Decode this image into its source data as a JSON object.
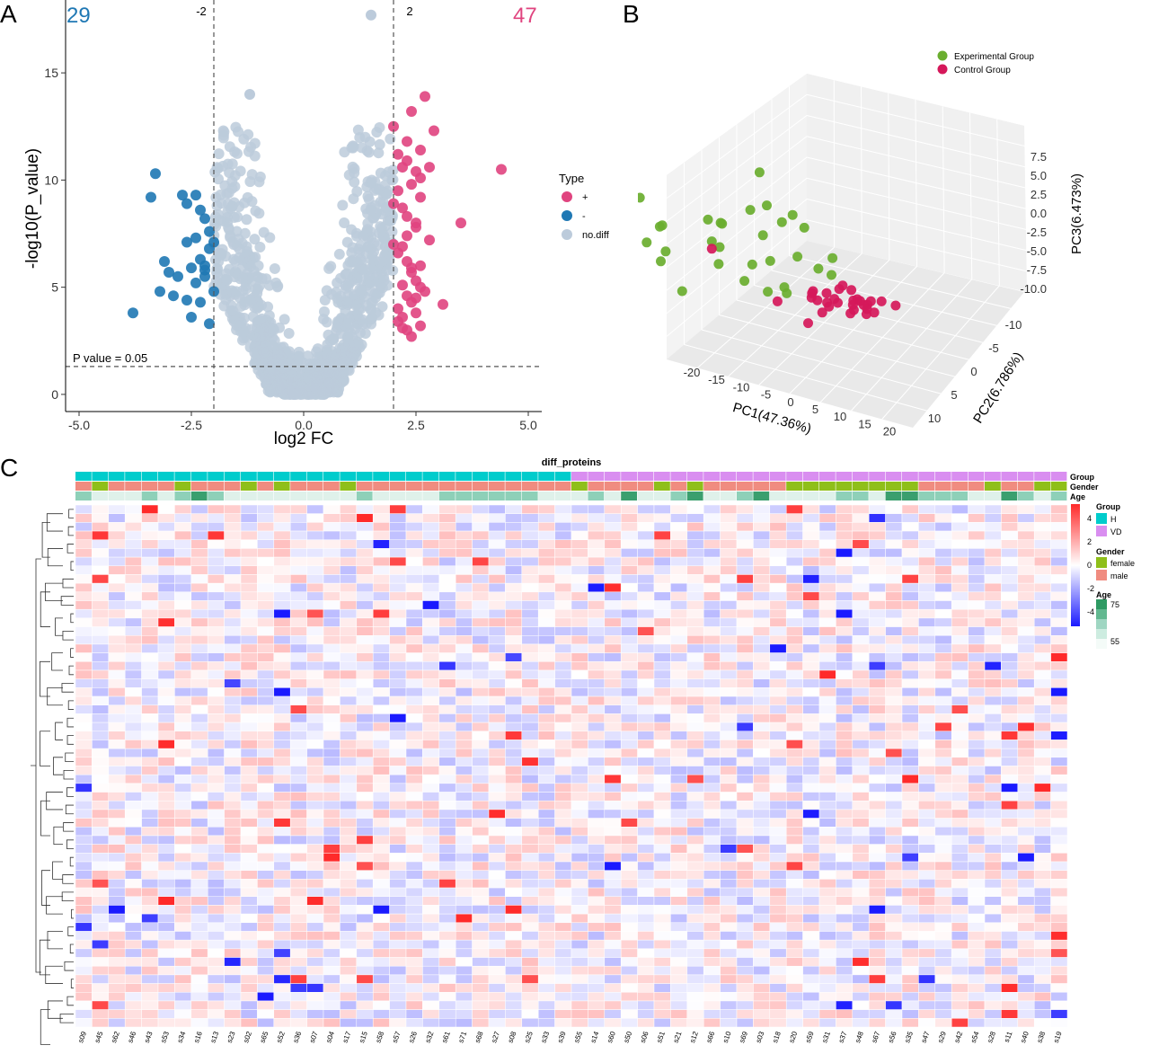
{
  "panels": {
    "a": "A",
    "b": "B",
    "c": "C"
  },
  "chart_data": [
    {
      "type": "scatter",
      "subtype": "volcano",
      "xlabel": "log2 FC",
      "ylabel": "-log10(P_value)",
      "xlim": [
        -5.3,
        5.3
      ],
      "ylim": [
        -0.8,
        18.4
      ],
      "xticks": [
        "-5.0",
        "-2.5",
        "0.0",
        "2.5",
        "5.0"
      ],
      "yticks": [
        "0",
        "5",
        "10",
        "15"
      ],
      "count_down": "29",
      "count_up": "47",
      "fc_lines": [
        -2,
        2
      ],
      "fc_line_labels": [
        "-2",
        "2"
      ],
      "p_line": 1.3,
      "p_line_label": "P value = 0.05",
      "legend": {
        "title": "Type",
        "position": "right",
        "entries": [
          "+",
          "-",
          "no.diff"
        ]
      },
      "colors": {
        "up": "#e0447f",
        "down": "#1f78b4",
        "nodiff": "#bccbdb"
      },
      "series": [
        {
          "name": "+",
          "x": [
            2.0,
            2.1,
            2.3,
            2.4,
            2.2,
            2.5,
            2.6,
            2.7,
            2.9,
            2.4,
            2.6,
            2.2,
            2.3,
            2.5,
            2.8,
            2.0,
            2.1,
            2.3,
            2.6,
            2.4,
            2.5,
            2.2,
            2.7,
            2.3,
            2.4,
            2.1,
            2.5,
            2.2,
            2.6,
            2.3,
            2.4,
            2.1,
            2.0,
            2.5,
            2.3,
            2.2,
            2.4,
            2.6,
            2.1,
            2.2,
            2.8,
            3.5,
            4.4,
            3.1,
            2.5,
            2.3,
            2.6
          ],
          "y": [
            12.5,
            11.2,
            11.8,
            13.2,
            10.6,
            10.4,
            10.1,
            13.9,
            12.3,
            9.8,
            9.2,
            8.7,
            8.3,
            7.8,
            7.2,
            7.0,
            6.6,
            6.2,
            6.0,
            5.7,
            5.3,
            5.1,
            4.8,
            4.6,
            4.3,
            4.0,
            3.8,
            3.6,
            3.2,
            3.0,
            2.7,
            9.5,
            8.9,
            8.0,
            7.4,
            6.9,
            5.9,
            5.0,
            3.4,
            3.1,
            10.6,
            8.0,
            10.5,
            4.2,
            4.5,
            10.9,
            11.4
          ]
        },
        {
          "name": "-",
          "x": [
            -3.3,
            -3.4,
            -2.7,
            -2.4,
            -2.6,
            -2.3,
            -2.2,
            -3.1,
            -3.0,
            -2.8,
            -2.5,
            -2.2,
            -2.1,
            -3.2,
            -2.9,
            -2.6,
            -2.4,
            -2.3,
            -3.8,
            -2.5,
            -2.1,
            -2.2,
            -2.0,
            -2.6,
            -2.4,
            -2.1,
            -2.0,
            -2.3,
            -2.2
          ],
          "y": [
            10.3,
            9.2,
            9.3,
            9.3,
            8.9,
            8.6,
            8.2,
            6.2,
            5.7,
            5.5,
            5.9,
            6.0,
            6.8,
            4.8,
            4.6,
            4.4,
            5.2,
            4.3,
            3.8,
            3.6,
            3.3,
            5.5,
            4.8,
            7.1,
            7.3,
            7.6,
            7.1,
            6.3,
            5.8
          ]
        }
      ],
      "highlights": [
        {
          "x": 1.5,
          "y": 17.7
        },
        {
          "x": -1.2,
          "y": 14.0
        }
      ]
    },
    {
      "type": "scatter",
      "subtype": "3d-pca",
      "xlabel": "PC1(47.36%)",
      "ylabel": "PC2(6.786%)",
      "zlabel": "PC3(6.473%)",
      "x_ticks": [
        "-20",
        "-15",
        "-10",
        "-5",
        "0",
        "5",
        "10",
        "15",
        "20"
      ],
      "y_ticks": [
        "-10",
        "-5",
        "0",
        "5",
        "10"
      ],
      "z_ticks": [
        "7.5",
        "5.0",
        "2.5",
        "0.0",
        "-2.5",
        "-5.0",
        "-7.5",
        "-10.0"
      ],
      "legend": {
        "position": "top-right",
        "entries": [
          "Experimental Group",
          "Control Group"
        ]
      },
      "colors": {
        "Experimental Group": "#6aae2f",
        "Control Group": "#d5185a"
      },
      "series": [
        {
          "name": "Experimental Group",
          "points": [
            [
              -14,
              6,
              9
            ],
            [
              -12,
              5,
              5
            ],
            [
              -13,
              4,
              4
            ],
            [
              -8,
              -6,
              6
            ],
            [
              -10,
              0,
              3
            ],
            [
              -6,
              5,
              4
            ],
            [
              -5,
              -3,
              4
            ],
            [
              -7,
              -3,
              3
            ],
            [
              -9,
              -1,
              2
            ],
            [
              -15,
              1,
              -3
            ],
            [
              -12,
              -5,
              -1
            ],
            [
              -10,
              -2,
              -2
            ],
            [
              -4,
              -6,
              1
            ],
            [
              -6,
              -7,
              -1
            ],
            [
              -4,
              -8,
              -2
            ],
            [
              -2,
              -4,
              -3
            ],
            [
              -9,
              -8,
              -4
            ],
            [
              -6,
              -5,
              -5
            ],
            [
              -7,
              -2,
              -6
            ],
            [
              -11,
              3,
              -5
            ],
            [
              -5,
              -6,
              -9
            ],
            [
              -3,
              -9,
              -8
            ],
            [
              -4,
              -5,
              -9
            ],
            [
              0,
              -7,
              -7
            ],
            [
              -2,
              -10,
              -7
            ],
            [
              -11,
              -9,
              -9
            ],
            [
              -16,
              2,
              0
            ],
            [
              -8,
              1,
              -2
            ],
            [
              -13,
              3,
              0
            ],
            [
              -7,
              -6,
              -10
            ]
          ]
        },
        {
          "name": "Control Group",
          "points": [
            [
              13,
              8,
              3
            ],
            [
              11,
              9,
              1
            ],
            [
              10,
              8,
              2
            ],
            [
              8,
              3,
              -1
            ],
            [
              9,
              2,
              -3
            ],
            [
              7,
              1,
              -2
            ],
            [
              6,
              1,
              -4
            ],
            [
              4,
              2,
              -3
            ],
            [
              12,
              4,
              -3
            ],
            [
              10,
              1,
              -4
            ],
            [
              9,
              -1,
              -5
            ],
            [
              7,
              -2,
              -6
            ],
            [
              5,
              -1,
              -6
            ],
            [
              3,
              -2,
              -7
            ],
            [
              2,
              -1,
              -5
            ],
            [
              8,
              -3,
              -8
            ],
            [
              6,
              -4,
              -8
            ],
            [
              4,
              -5,
              -9
            ],
            [
              1,
              -4,
              -10
            ],
            [
              0,
              -3,
              -11
            ],
            [
              5,
              -6,
              -10
            ],
            [
              3,
              -6,
              -11
            ],
            [
              -1,
              -5,
              -9
            ],
            [
              -3,
              -2,
              -8
            ],
            [
              2,
              -8,
              -12
            ],
            [
              1,
              -10,
              -12
            ],
            [
              -6,
              5,
              3
            ],
            [
              11,
              0,
              -4
            ],
            [
              12,
              -1,
              -5
            ],
            [
              -1,
              -6,
              -10
            ]
          ]
        }
      ]
    },
    {
      "type": "heatmap",
      "title": "diff_proteins",
      "samples": [
        "s09",
        "s45",
        "s62",
        "s46",
        "s43",
        "s53",
        "s34",
        "s16",
        "s13",
        "s23",
        "s02",
        "s65",
        "s52",
        "s36",
        "s07",
        "s04",
        "s17",
        "s15",
        "s58",
        "s57",
        "s26",
        "s32",
        "s61",
        "s71",
        "s68",
        "s27",
        "s08",
        "s25",
        "s33",
        "s39",
        "s55",
        "s14",
        "s60",
        "s50",
        "s06",
        "s51",
        "s21",
        "s12",
        "s66",
        "s10",
        "s69",
        "s03",
        "s18",
        "s20",
        "s59",
        "s31",
        "s37",
        "s48",
        "s67",
        "s56",
        "s35",
        "s47",
        "s29",
        "s42",
        "s54",
        "s28",
        "s11",
        "s40",
        "s38",
        "s19"
      ],
      "group_count_H": 30,
      "gender_female_idx": [
        1,
        6,
        10,
        12,
        16,
        30,
        35,
        37,
        43,
        44,
        45,
        46,
        47,
        48,
        49,
        50,
        55,
        58,
        59
      ],
      "age_75_idx": [
        7,
        33,
        37,
        41,
        49,
        50,
        56
      ],
      "age_mid_idx": [
        0,
        4,
        6,
        8,
        17,
        22,
        23,
        24,
        25,
        26,
        27,
        31,
        36,
        40,
        46,
        47,
        51,
        52,
        53,
        57,
        59
      ],
      "n_rows": 60,
      "color_scale": {
        "min": -4,
        "max": 4,
        "ticks": [
          "4",
          "2",
          "0",
          "-2",
          "-4"
        ]
      },
      "annotation_rows": [
        "Group",
        "Gender",
        "Age"
      ],
      "legend": {
        "Group": {
          "title": "Group",
          "entries": [
            "H",
            "VD"
          ],
          "colors": [
            "#00cccc",
            "#d98ef0"
          ]
        },
        "Gender": {
          "title": "Gender",
          "entries": [
            "female",
            "male"
          ],
          "colors": [
            "#8fbf1a",
            "#f08c80"
          ]
        },
        "Age": {
          "title": "Age",
          "labels": [
            "75",
            "55"
          ],
          "colors": [
            "#2e9a63",
            "#f4fbf8"
          ]
        }
      },
      "colors": {
        "low": "#1a1aff",
        "mid": "#ffffff",
        "high": "#ff2a2a"
      }
    }
  ]
}
